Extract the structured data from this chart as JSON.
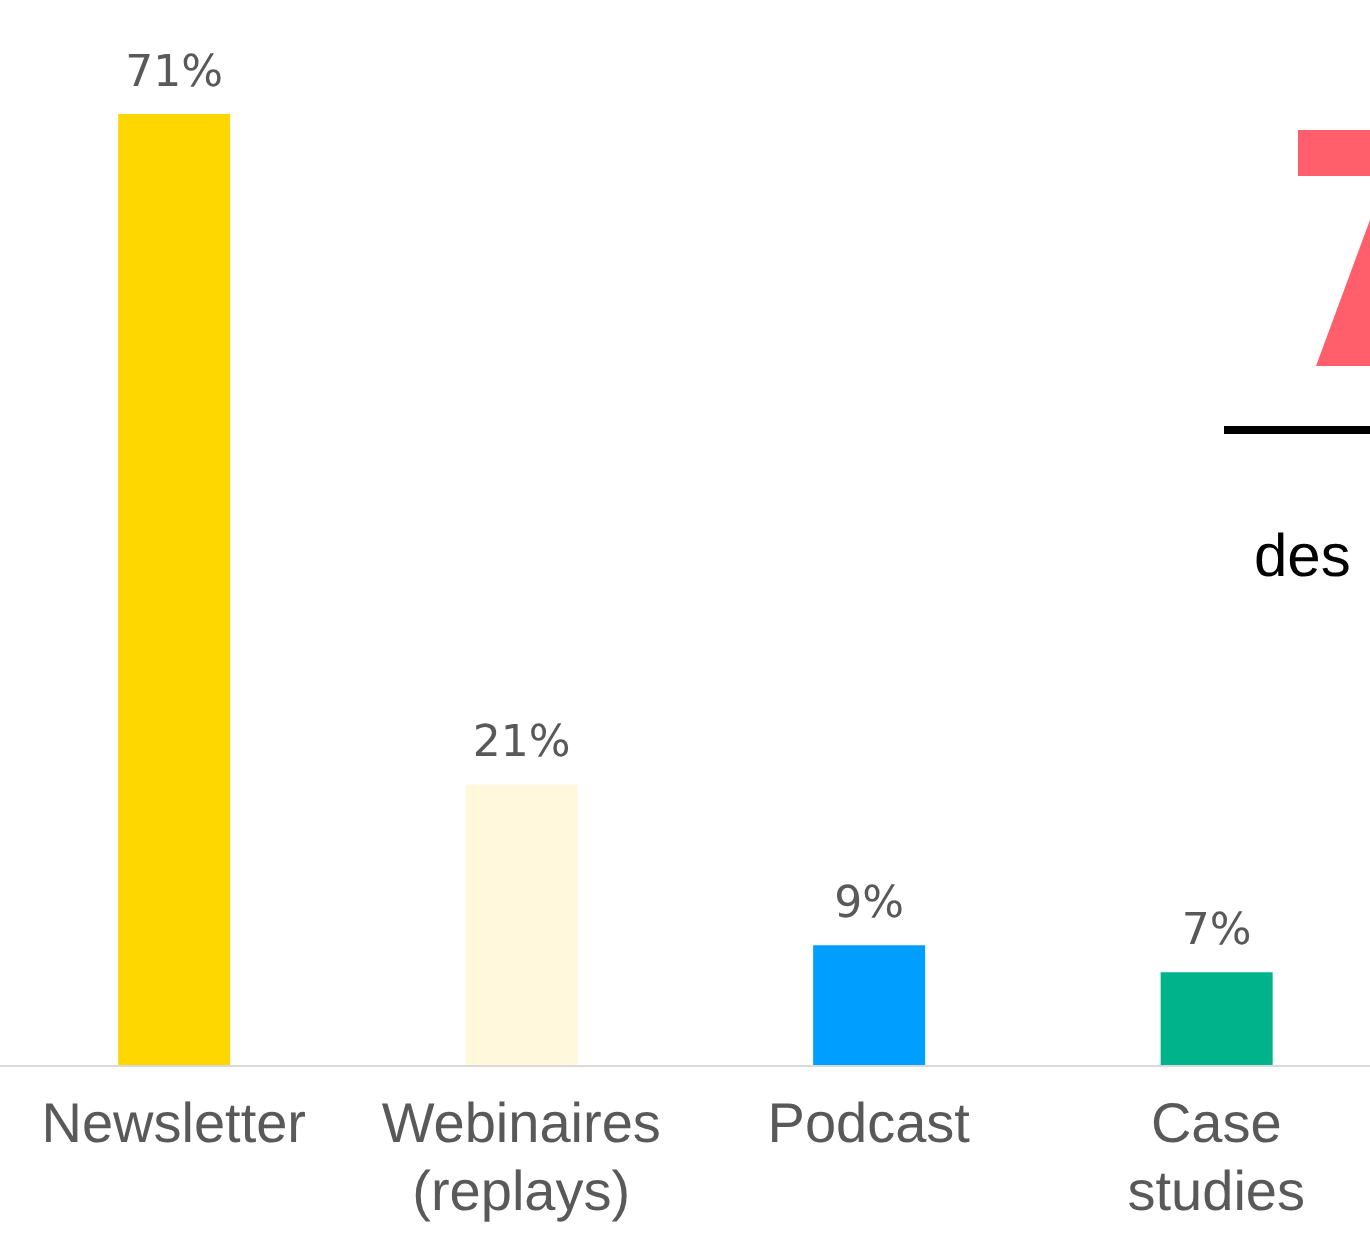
{
  "chart_data": {
    "type": "bar",
    "categories": [
      "Newsletter",
      "Webinaires (replays)",
      "Podcast",
      "Case studies"
    ],
    "values": [
      71,
      21,
      9,
      7
    ],
    "colors": [
      "#ffd700",
      "#fff8dc",
      "#009fff",
      "#00b38a"
    ],
    "value_labels": [
      "71%",
      "21%",
      "9%",
      "7%"
    ],
    "annotations": [
      "des"
    ],
    "grid": false,
    "legend": false
  }
}
